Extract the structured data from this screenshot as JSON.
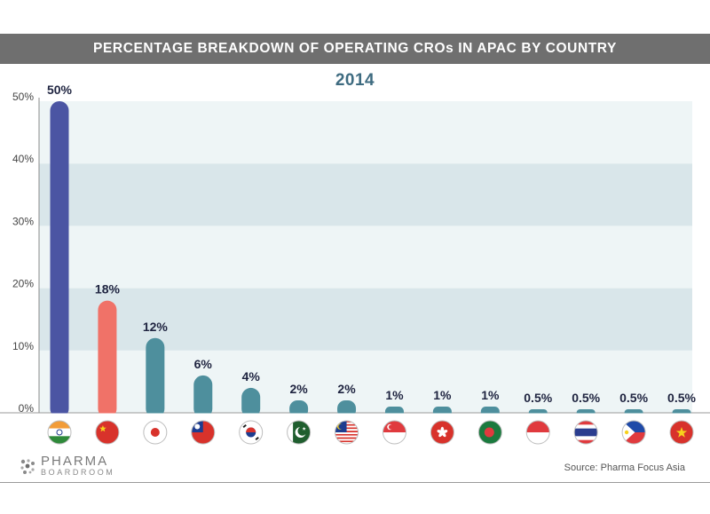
{
  "header": {
    "title": "PERCENTAGE BREAKDOWN OF OPERATING CROs IN APAC BY COUNTRY"
  },
  "footer": {
    "logo_line1": "PHARMA",
    "logo_line2": "BOARDROOM",
    "source": "Source: Pharma Focus Asia"
  },
  "colors": {
    "india_bar": "#4b55a3",
    "china_bar": "#f07268",
    "default_bar": "#4e8f9d",
    "label": "#1f2440",
    "band_light": "#eef5f6",
    "band_dark": "#d9e6ea"
  },
  "chart_data": {
    "type": "bar",
    "title": "2014",
    "categories": [
      "india-flag-icon",
      "china-flag-icon",
      "japan-flag-icon",
      "taiwan-flag-icon",
      "south-korea-flag-icon",
      "pakistan-flag-icon",
      "malaysia-flag-icon",
      "singapore-flag-icon",
      "hong-kong-flag-icon",
      "bangladesh-flag-icon",
      "indonesia-flag-icon",
      "thailand-flag-icon",
      "philippines-flag-icon",
      "vietnam-flag-icon"
    ],
    "values": [
      50,
      18,
      12,
      6,
      4,
      2,
      2,
      1,
      1,
      1,
      0.5,
      0.5,
      0.5,
      0.5
    ],
    "value_labels": [
      "50%",
      "18%",
      "12%",
      "6%",
      "4%",
      "2%",
      "2%",
      "1%",
      "1%",
      "1%",
      "0.5%",
      "0.5%",
      "0.5%",
      "0.5%"
    ],
    "yticks": [
      "0%",
      "10%",
      "20%",
      "30%",
      "40%",
      "50%"
    ],
    "ylim": [
      0,
      50
    ],
    "grid": "alternating horizontal bands",
    "legend": "none",
    "xlabel": "",
    "ylabel": ""
  }
}
